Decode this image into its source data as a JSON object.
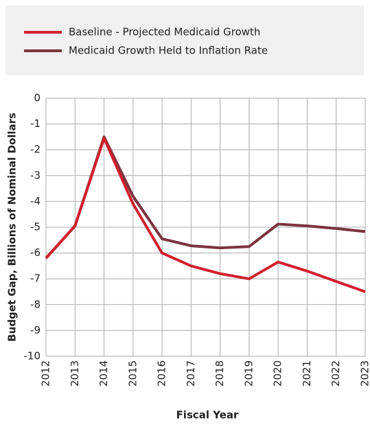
{
  "chart_data": {
    "type": "line",
    "categories": [
      "2012",
      "2013",
      "2014",
      "2015",
      "2016",
      "2017",
      "2018",
      "2019",
      "2020",
      "2021",
      "2022",
      "2023"
    ],
    "series": [
      {
        "name": "Baseline - Projected Medicaid Growth",
        "color": "#d0202e",
        "values": [
          -6.2,
          -4.95,
          -1.55,
          -4.1,
          -6.0,
          -6.5,
          -6.8,
          -7.0,
          -6.35,
          -6.7,
          -7.1,
          -7.5
        ]
      },
      {
        "name": "Medicaid Growth Held to Inflation Rate",
        "color": "#7b3340",
        "values": [
          -6.2,
          -4.95,
          -1.5,
          -3.8,
          -5.45,
          -5.72,
          -5.8,
          -5.75,
          -4.88,
          -4.95,
          -5.05,
          -5.17
        ]
      }
    ],
    "x_label": "Fiscal Year",
    "y_label": "Budget Gap, Billions of Nominal Dollars",
    "ylim": [
      -10,
      0
    ],
    "yticks": [
      0,
      -1,
      -2,
      -3,
      -4,
      -5,
      -6,
      -7,
      -8,
      -9,
      -10
    ],
    "grid": true
  }
}
